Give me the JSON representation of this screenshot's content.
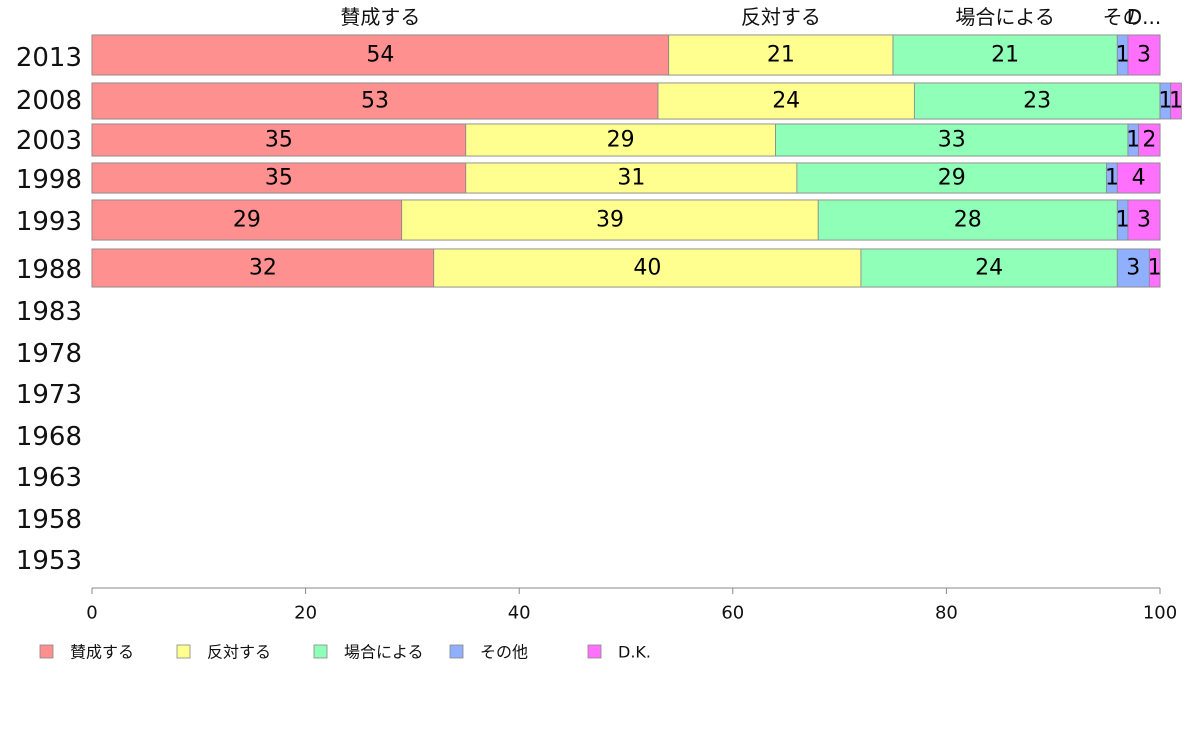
{
  "chart_data": {
    "type": "bar",
    "orientation": "horizontal",
    "stacked": true,
    "categories": [
      "2013",
      "2008",
      "2003",
      "1998",
      "1993",
      "1988",
      "1983",
      "1978",
      "1973",
      "1968",
      "1963",
      "1958",
      "1953"
    ],
    "series": [
      {
        "name": "賛成する",
        "color": "#ff9090",
        "values": [
          54,
          53,
          35,
          35,
          29,
          32,
          null,
          null,
          null,
          null,
          null,
          null,
          null
        ]
      },
      {
        "name": "反対する",
        "color": "#ffff90",
        "values": [
          21,
          24,
          29,
          31,
          39,
          40,
          null,
          null,
          null,
          null,
          null,
          null,
          null
        ]
      },
      {
        "name": "場合による",
        "color": "#90ffb8",
        "values": [
          21,
          23,
          33,
          29,
          28,
          24,
          null,
          null,
          null,
          null,
          null,
          null,
          null
        ]
      },
      {
        "name": "その他",
        "color": "#90b0ff",
        "values": [
          1,
          1,
          1,
          1,
          1,
          3,
          null,
          null,
          null,
          null,
          null,
          null,
          null
        ]
      },
      {
        "name": "D.K.",
        "color": "#ff70ff",
        "values": [
          3,
          1,
          2,
          4,
          3,
          1,
          null,
          null,
          null,
          null,
          null,
          null,
          null
        ]
      }
    ],
    "top_labels": [
      "賛成する",
      "反対する",
      "場合による",
      "その他",
      "D.K."
    ],
    "top_label_display": [
      "賛成する",
      "反対する",
      "場合による",
      "その",
      "D..."
    ],
    "xlim": [
      0,
      100
    ],
    "x_ticks": [
      0,
      20,
      40,
      60,
      80,
      100
    ],
    "legend_position": "bottom-left",
    "grid": false
  }
}
